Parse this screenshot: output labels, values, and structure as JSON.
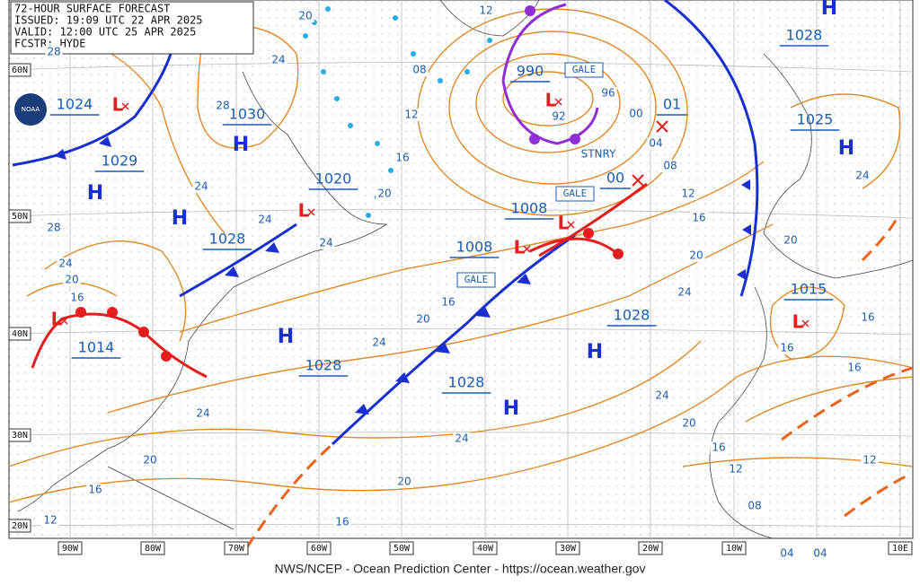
{
  "header": {
    "lines": [
      "72-HOUR SURFACE FORECAST",
      "ISSUED: 19:09 UTC 22 APR 2025",
      "VALID: 12:00 UTC 25 APR 2025",
      "FCSTR: HYDE"
    ]
  },
  "logo": "NOAA",
  "latitude_labels": [
    "60N",
    "50N",
    "40N",
    "30N",
    "20N"
  ],
  "longitude_labels": [
    "90W",
    "80W",
    "70W",
    "60W",
    "50W",
    "40W",
    "30W",
    "20W",
    "10W",
    "10E"
  ],
  "pressure_centers": [
    "1024",
    "1030",
    "1029",
    "1020",
    "1028",
    "1014",
    "1028",
    "1008",
    "1008",
    "1028",
    "1028",
    "990",
    "01",
    "00",
    "1025",
    "1028",
    "1015"
  ],
  "highs": [
    "H",
    "H",
    "H",
    "H",
    "H",
    "H",
    "H",
    "H"
  ],
  "lows": [
    "L",
    "L",
    "L",
    "L",
    "L",
    "L",
    "L"
  ],
  "isobar_labels": [
    "28",
    "20",
    "24",
    "28",
    "08",
    "12",
    "16",
    "20",
    "12",
    "96",
    "92",
    "00",
    "04",
    "08",
    "12",
    "16",
    "20",
    "24",
    "24",
    "20",
    "16",
    "16",
    "16",
    "24",
    "20",
    "16",
    "12",
    "08",
    "04",
    "04",
    "12",
    "24",
    "24",
    "28",
    "24",
    "20",
    "16",
    "24",
    "16",
    "20",
    "24",
    "24",
    "24",
    "20",
    "16",
    "12",
    "20",
    "16"
  ],
  "gale_warnings": [
    "GALE",
    "GALE",
    "GALE"
  ],
  "stationary_label": "STNRY",
  "footer": "NWS/NCEP - Ocean Prediction Center - https://ocean.weather.gov"
}
